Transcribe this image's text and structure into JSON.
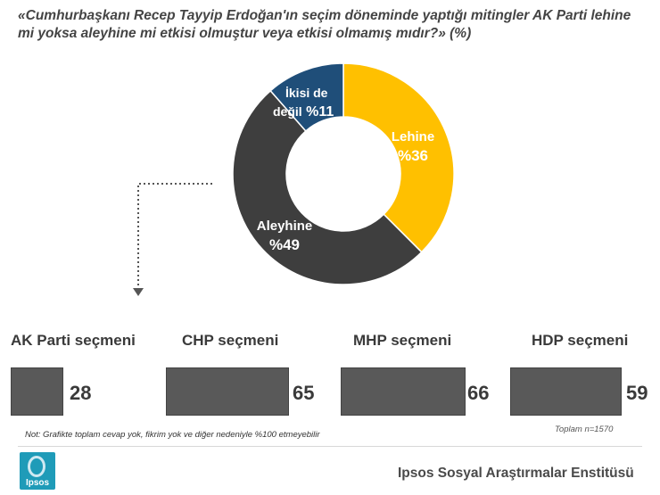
{
  "title": {
    "line1": "«Cumhurbaşkanı Recep Tayyip Erdoğan'ın seçim döneminde yaptığı mitingler AK Parti lehine",
    "line2": "mi yoksa aleyhine mi etkisi olmuştur veya etkisi olmamış mıdır?»",
    "suffix": " (%)"
  },
  "chart_data": [
    {
      "type": "pie",
      "subtype": "donut",
      "title": "«Cumhurbaşkanı Recep Tayyip Erdoğan'ın seçim döneminde yaptığı mitingler AK Parti lehine mi yoksa aleyhine mi etkisi olmuştur veya etkisi olmamış mıdır?» (%)",
      "slices": [
        {
          "name": "Lehine",
          "value": 36,
          "label": "%36",
          "color": "#FFC000"
        },
        {
          "name": "Aleyhine",
          "value": 49,
          "label": "%49",
          "color": "#3E3E3E"
        },
        {
          "name": "İkisi de değil",
          "value": 11,
          "label": "%11",
          "color": "#1F4E79"
        }
      ]
    },
    {
      "type": "bar",
      "categories": [
        "AK Parti seçmeni",
        "CHP seçmeni",
        "MHP seçmeni",
        "HDP seçmeni"
      ],
      "values": [
        28,
        65,
        66,
        59
      ],
      "color": "#595959"
    }
  ],
  "donut_labels": {
    "lehine": {
      "name": "Lehine",
      "pct": "%36"
    },
    "aleyhine": {
      "name": "Aleyhine",
      "pct": "%49"
    },
    "ikisi": {
      "name1": "İkisi de",
      "name2": "değil",
      "pct": "%11"
    }
  },
  "groups": [
    {
      "label": "AK Parti seçmeni",
      "value": "28"
    },
    {
      "label": "CHP seçmeni",
      "value": "65"
    },
    {
      "label": "MHP seçmeni",
      "value": "66"
    },
    {
      "label": "HDP seçmeni",
      "value": "59"
    }
  ],
  "note": "Not: Grafikte toplam cevap yok, fikrim yok ve diğer nedeniyle %100 etmeyebilir",
  "total": "Toplam n=1570",
  "logo_text": "Ipsos",
  "footer": "Ipsos Sosyal Araştırmalar Enstitüsü"
}
